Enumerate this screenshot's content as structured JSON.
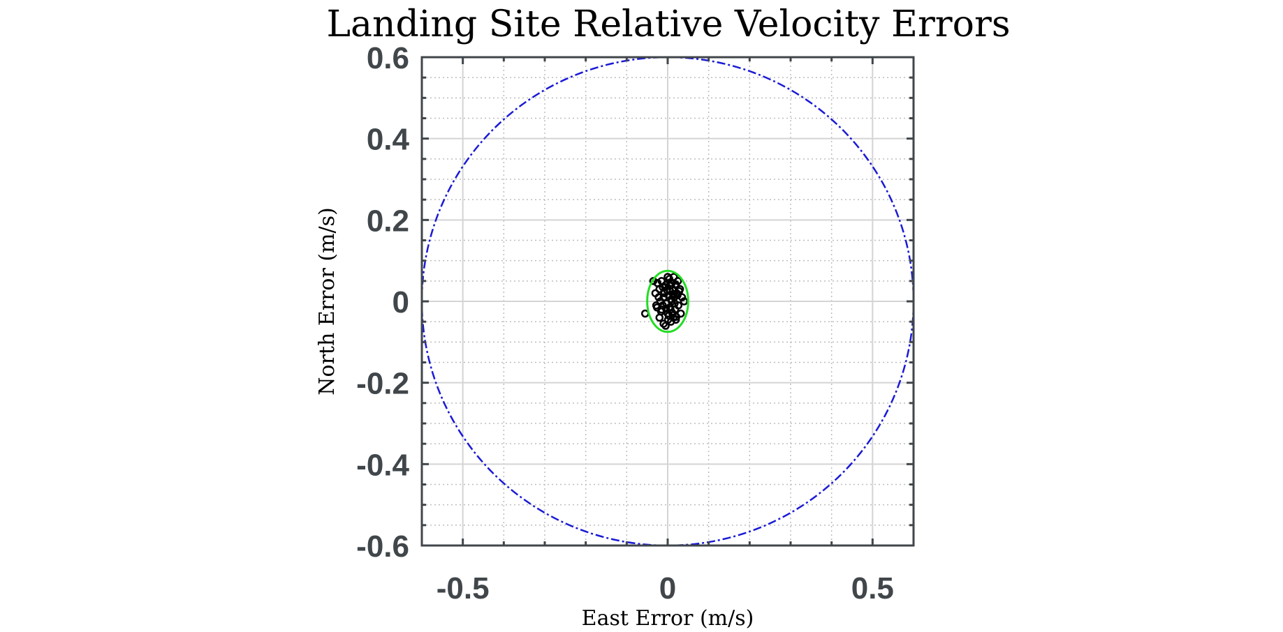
{
  "chart_data": {
    "type": "scatter",
    "title": "Landing Site Relative Velocity Errors",
    "xlabel": "East Error (m/s)",
    "ylabel": "North Error (m/s)",
    "xlim": [
      -0.6,
      0.6
    ],
    "ylim": [
      -0.6,
      0.6
    ],
    "x_ticks": [
      -0.5,
      0,
      0.5
    ],
    "x_tick_labels": [
      "-0.5",
      "0",
      "0.5"
    ],
    "y_ticks": [
      0.6,
      0.4,
      0.2,
      0,
      -0.2,
      -0.4,
      -0.6
    ],
    "y_tick_labels": [
      "0.6",
      "0.4",
      "0.2",
      "0",
      "-0.2",
      "-0.4",
      "-0.6"
    ],
    "x_minor_step": 0.1,
    "y_minor_step": 0.05,
    "grid": true,
    "boundary_circle": {
      "center": [
        0,
        0
      ],
      "radius": 0.6,
      "color": "#1a1ad6",
      "style": "dash-dot"
    },
    "error_ellipse": {
      "center": [
        0.0,
        0.0
      ],
      "semi_axis_x": 0.05,
      "semi_axis_y": 0.075,
      "color": "#22dd22"
    },
    "points": {
      "marker": "open-circle",
      "color": "#000000",
      "x": [
        -0.055,
        -0.035,
        -0.03,
        -0.028,
        -0.025,
        -0.02,
        -0.02,
        -0.018,
        -0.015,
        -0.015,
        -0.012,
        -0.01,
        -0.01,
        -0.008,
        -0.005,
        -0.005,
        -0.003,
        0.0,
        0.0,
        0.002,
        0.004,
        0.005,
        0.006,
        0.008,
        0.01,
        0.01,
        0.012,
        0.014,
        0.015,
        0.016,
        0.018,
        0.02,
        0.02,
        0.022,
        0.025,
        0.026,
        0.03,
        0.032,
        0.035,
        0.04,
        -0.022,
        -0.012,
        -0.006,
        0.003,
        0.009,
        0.017,
        0.024,
        -0.016,
        0.007,
        0.028,
        -0.026,
        0.013,
        -0.002,
        0.019,
        0.001,
        -0.009,
        0.011,
        0.021,
        -0.004,
        0.006
      ],
      "y": [
        -0.03,
        0.05,
        0.02,
        -0.01,
        0.045,
        0.03,
        -0.04,
        0.0,
        0.05,
        -0.02,
        0.035,
        -0.055,
        0.01,
        0.02,
        -0.06,
        0.04,
        -0.005,
        0.06,
        -0.03,
        0.015,
        0.055,
        -0.015,
        0.025,
        -0.05,
        0.045,
        0.0,
        0.03,
        -0.04,
        0.06,
        0.01,
        -0.02,
        0.04,
        -0.045,
        0.02,
        0.05,
        -0.01,
        0.03,
        -0.03,
        0.01,
        0.0,
        0.01,
        -0.01,
        0.035,
        -0.035,
        0.005,
        -0.005,
        0.015,
        -0.025,
        -0.02,
        0.025,
        -0.015,
        0.018,
        0.028,
        0.042,
        -0.045,
        0.022,
        -0.028,
        -0.038,
        -0.018,
        0.038
      ]
    }
  }
}
